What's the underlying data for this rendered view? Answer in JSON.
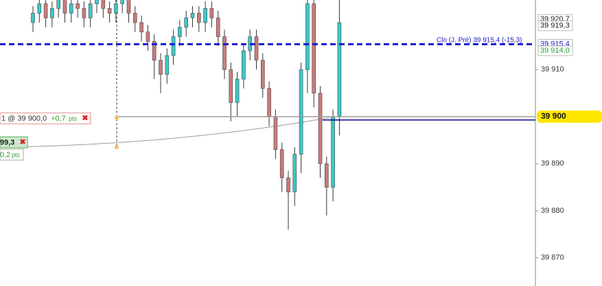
{
  "chart_data": {
    "type": "candlestick",
    "categories": [
      null,
      null,
      null,
      null,
      null,
      null,
      null,
      null,
      null,
      null,
      null,
      null,
      null,
      null,
      null,
      null,
      null,
      null,
      null,
      null,
      null,
      null,
      null,
      null,
      null,
      null,
      null,
      null,
      null,
      null,
      null,
      null,
      null,
      null,
      null,
      null,
      null,
      null,
      null,
      null,
      null,
      null,
      null,
      null,
      null,
      null,
      null,
      null,
      null
    ],
    "open": [
      39920,
      39922,
      39924,
      39921,
      39923,
      39925,
      39922,
      39924,
      39923,
      39921,
      39924,
      39925,
      39923,
      39922,
      39924,
      39925,
      39922,
      39920,
      39918,
      39916,
      39912,
      39909,
      39913,
      39917,
      39919,
      39921,
      39922,
      39920,
      39923,
      39921,
      39917,
      39910,
      39903,
      39908,
      39914,
      39917,
      39912,
      39906,
      39900,
      39893,
      39887,
      39884,
      39892,
      39910,
      39924,
      39905,
      39890,
      39885,
      39900
    ],
    "high": [
      39923.5,
      39925.5,
      39925.5,
      39924.5,
      39926.5,
      39926.5,
      39925.5,
      39925.5,
      39924.5,
      39925.5,
      39926.5,
      39926.5,
      39924.5,
      39925.5,
      39926.5,
      39926.5,
      39923.5,
      39921.5,
      39919.5,
      39917.5,
      39913.5,
      39914.5,
      39918.5,
      39920.5,
      39922.5,
      39923.5,
      39923.5,
      39924.5,
      39924.5,
      39922.5,
      39918.5,
      39911.5,
      39909.5,
      39915.5,
      39918.5,
      39918.5,
      39913.5,
      39907.5,
      39901.5,
      39894.5,
      39888.5,
      39893.5,
      39911.5,
      39926,
      39926,
      39906.5,
      39891.5,
      39901.5,
      39926
    ],
    "low": [
      39918,
      39920,
      39919,
      39919,
      39921,
      39920,
      39920,
      39921,
      39919,
      39919,
      39922,
      39921,
      39920,
      39920,
      39922,
      39920,
      39918,
      39916,
      39914,
      39908,
      39905,
      39907,
      39911,
      39915,
      39917,
      39919,
      39918,
      39918,
      39919,
      39915,
      39908,
      39899,
      39900,
      39906,
      39912,
      39910,
      39904,
      39898,
      39891,
      39884,
      39876,
      39881,
      39888,
      39905,
      39902,
      39887,
      39879,
      39882,
      39896
    ],
    "close": [
      39922,
      39924,
      39921,
      39923,
      39925,
      39922,
      39924,
      39923,
      39921,
      39924,
      39925,
      39923,
      39922,
      39924,
      39925,
      39922,
      39920,
      39918,
      39916,
      39912,
      39909,
      39913,
      39917,
      39919,
      39921,
      39922,
      39920,
      39923,
      39921,
      39917,
      39910,
      39903,
      39908,
      39914,
      39917,
      39912,
      39906,
      39900,
      39893,
      39887,
      39884,
      39892,
      39910,
      39924,
      39905,
      39890,
      39885,
      39900,
      39920
    ],
    "up_color": "#3ec6c6",
    "down_color": "#c97b7b",
    "ylim": [
      39864,
      39924.8
    ],
    "yticks": [
      {
        "value": 39910,
        "label": "39 910"
      },
      {
        "value": 39890,
        "label": "39 890"
      },
      {
        "value": 39880,
        "label": "39 880"
      },
      {
        "value": 39870,
        "label": "39 870"
      }
    ],
    "price_labels": [
      {
        "value": 39920.7,
        "label": "39 920,7",
        "color": "#222222"
      },
      {
        "value": 39919.3,
        "label": "39 919,3",
        "color": "#222222"
      },
      {
        "value": 39915.4,
        "label": "39 915,4",
        "color": "#1a1acc"
      },
      {
        "value": 39914.0,
        "label": "39 914,0",
        "color": "#2e9e2e"
      }
    ],
    "highlight": {
      "value": 39900,
      "label": "39 900",
      "color": "#ffe600"
    },
    "ref_lines": [
      {
        "value": 39915.4,
        "color": "#1a1acc",
        "style": "dashed"
      },
      {
        "value": 39900,
        "color": "#9a9a9a",
        "style": "solid"
      },
      {
        "value": 39899.3,
        "color": "#00008b",
        "style": "solid"
      }
    ],
    "prev_close_text": "Clo (J. Pré) 39 915,4 (-15,3)",
    "orders": [
      {
        "text": "1  @ 39 900,0",
        "pnl": "+0,7",
        "unit": "pts"
      },
      {
        "text": "99,3",
        "pnl": "0,2",
        "unit": "pts"
      }
    ]
  }
}
